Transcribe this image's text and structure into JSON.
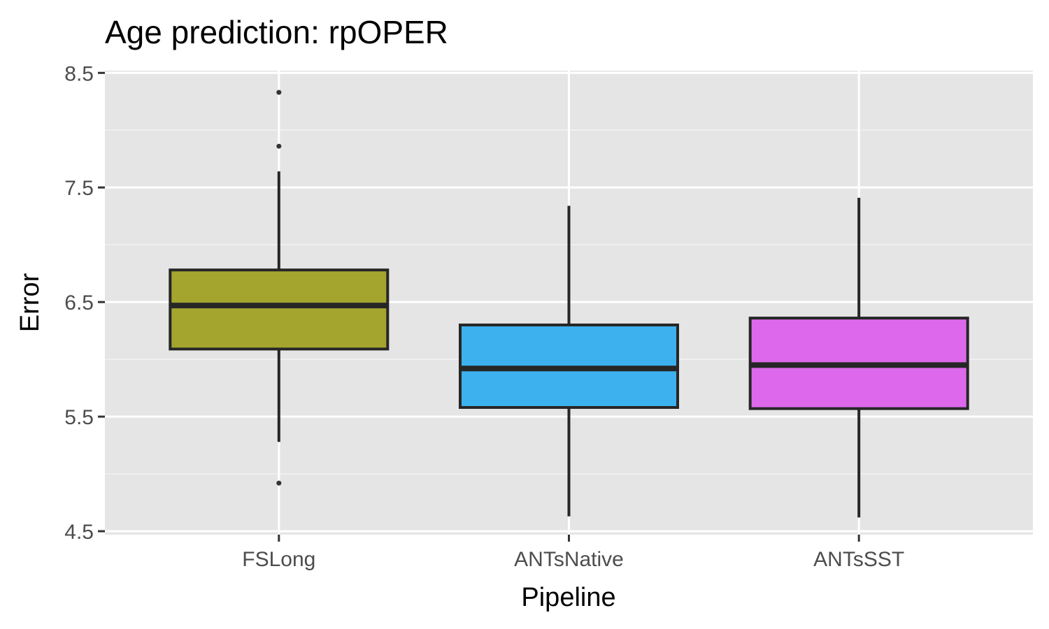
{
  "chart_data": {
    "type": "boxplot",
    "title": "Age prediction: rpOPER",
    "xlabel": "Pipeline",
    "ylabel": "Error",
    "ylim": [
      4.47,
      8.52
    ],
    "y_ticks": [
      {
        "value": 4.5,
        "label": "4.5"
      },
      {
        "value": 5.5,
        "label": "5.5"
      },
      {
        "value": 6.5,
        "label": "6.5"
      },
      {
        "value": 7.5,
        "label": "7.5"
      },
      {
        "value": 8.5,
        "label": "8.5"
      }
    ],
    "grid": true,
    "legend": "none",
    "categories": [
      "FSLong",
      "ANTsNative",
      "ANTsSST"
    ],
    "boxes": [
      {
        "category": "FSLong",
        "whisker_low": 5.28,
        "q1": 6.09,
        "median": 6.47,
        "q3": 6.78,
        "whisker_high": 7.64,
        "outliers": [
          4.92,
          7.86,
          8.33
        ],
        "color": "#a3a52f"
      },
      {
        "category": "ANTsNative",
        "whisker_low": 4.63,
        "q1": 5.58,
        "median": 5.92,
        "q3": 6.3,
        "whisker_high": 7.34,
        "outliers": [],
        "color": "#3cb1ee"
      },
      {
        "category": "ANTsSST",
        "whisker_low": 4.62,
        "q1": 5.57,
        "median": 5.95,
        "q3": 6.36,
        "whisker_high": 7.41,
        "outliers": [],
        "color": "#dd68eb"
      }
    ],
    "colors": {
      "panel_bg": "#e5e5e5",
      "grid_major": "#ffffff",
      "grid_minor": "#f2f2f2",
      "box_stroke": "#262626"
    }
  }
}
